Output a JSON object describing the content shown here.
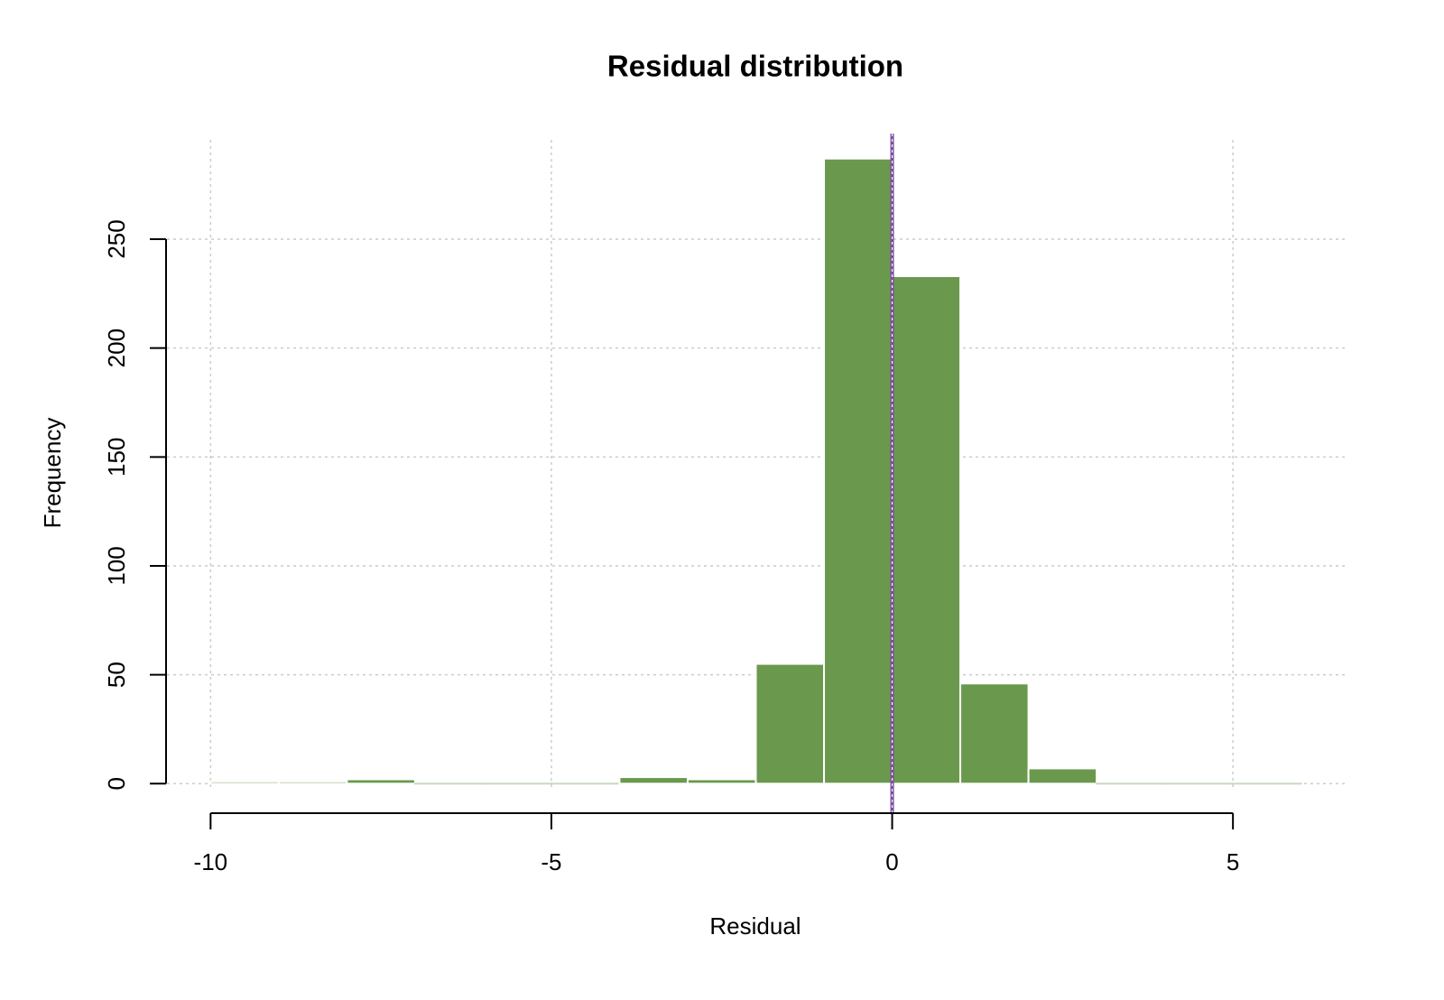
{
  "chart_data": {
    "type": "histogram",
    "title": "Residual distribution",
    "x_label": "Residual",
    "y_label": "Frequency",
    "bins": [
      -10,
      -9,
      -8,
      -7,
      -6,
      -5,
      -4,
      -3,
      -2,
      -1,
      0,
      1,
      2,
      3,
      4,
      5,
      6
    ],
    "values": [
      1,
      1,
      2,
      0,
      0,
      0,
      3,
      2,
      55,
      287,
      233,
      46,
      7,
      0,
      0,
      0
    ],
    "color": "#6a994e",
    "xlim": [
      -10.64,
      6.64
    ],
    "ylim": [
      -11.48,
      298.48
    ],
    "xticks": [
      -10,
      -5,
      0,
      5
    ],
    "yticks": [
      0,
      50,
      100,
      150,
      200,
      250
    ],
    "grid": true,
    "vline": {
      "value": 0,
      "color": "#7b4f9d"
    }
  }
}
